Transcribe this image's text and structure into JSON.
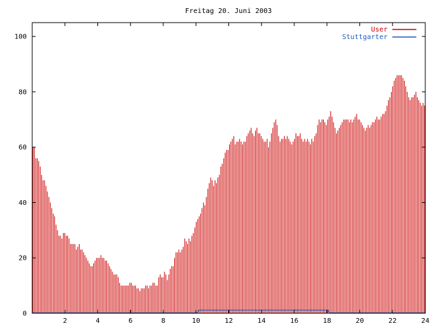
{
  "colors": {
    "user": "#cc0000",
    "stuttgarter": "#1f5fbf",
    "axis": "#000000",
    "background": "#ffffff"
  },
  "chart_data": {
    "type": "bar",
    "title": "Freitag 20. Juni 2003",
    "xlabel": "",
    "ylabel": "",
    "xlim": [
      0,
      24
    ],
    "ylim": [
      0,
      105
    ],
    "grid": false,
    "legend": "top-right",
    "x_ticks": [
      "2",
      "4",
      "6",
      "8",
      "10",
      "12",
      "14",
      "16",
      "18",
      "20",
      "22",
      "24"
    ],
    "y_ticks": [
      "0",
      "20",
      "40",
      "60",
      "80",
      "100"
    ],
    "x_interval_hours": 0.0833,
    "series": [
      {
        "name": "User",
        "values": [
          60,
          60,
          56,
          56,
          55,
          53,
          50,
          48,
          48,
          46,
          44,
          42,
          40,
          38,
          36,
          35,
          32,
          30,
          28,
          28,
          27,
          29,
          29,
          28,
          28,
          27,
          25,
          25,
          25,
          25,
          23,
          24,
          25,
          23,
          23,
          22,
          21,
          20,
          19,
          18,
          17,
          17,
          18,
          19,
          20,
          20,
          20,
          21,
          20,
          20,
          19,
          19,
          18,
          17,
          16,
          15,
          14,
          14,
          14,
          13,
          11,
          10,
          10,
          10,
          10,
          10,
          10,
          11,
          11,
          10,
          10,
          10,
          9,
          9,
          8,
          9,
          9,
          9,
          10,
          10,
          9,
          10,
          10,
          11,
          11,
          10,
          10,
          13,
          14,
          13,
          13,
          15,
          14,
          12,
          14,
          16,
          17,
          17,
          20,
          22,
          22,
          23,
          22,
          23,
          24,
          27,
          26,
          25,
          27,
          26,
          28,
          29,
          31,
          33,
          34,
          35,
          36,
          38,
          40,
          39,
          42,
          45,
          47,
          49,
          48,
          46,
          48,
          47,
          49,
          50,
          53,
          54,
          56,
          58,
          59,
          59,
          61,
          62,
          63,
          64,
          61,
          62,
          62,
          63,
          62,
          61,
          62,
          62,
          64,
          65,
          66,
          67,
          65,
          64,
          66,
          67,
          65,
          65,
          64,
          63,
          62,
          62,
          63,
          60,
          62,
          65,
          67,
          69,
          70,
          68,
          64,
          62,
          63,
          63,
          64,
          63,
          64,
          63,
          62,
          61,
          62,
          63,
          65,
          64,
          64,
          65,
          63,
          62,
          63,
          62,
          63,
          62,
          61,
          63,
          62,
          64,
          65,
          68,
          70,
          69,
          70,
          70,
          69,
          68,
          70,
          71,
          73,
          71,
          69,
          67,
          65,
          66,
          67,
          68,
          69,
          70,
          70,
          70,
          70,
          69,
          70,
          69,
          70,
          71,
          72,
          70,
          70,
          69,
          68,
          67,
          66,
          67,
          68,
          67,
          68,
          69,
          69,
          70,
          71,
          70,
          70,
          71,
          72,
          72,
          73,
          75,
          77,
          78,
          80,
          82,
          84,
          85,
          86,
          86,
          86,
          86,
          85,
          84,
          82,
          80,
          78,
          77,
          78,
          78,
          79,
          80,
          78,
          77,
          76,
          75,
          76,
          75
        ],
        "fill_to_zero": true
      },
      {
        "name": "Stuttgarter",
        "values": [
          0,
          0,
          0,
          0,
          0,
          0,
          0,
          0,
          0,
          0,
          0,
          0,
          0,
          0,
          0,
          0,
          0,
          0,
          0,
          0,
          0,
          0,
          0,
          0,
          0,
          0,
          0,
          0,
          0,
          0,
          0,
          0,
          0,
          0,
          0,
          0,
          0,
          0,
          0,
          0,
          0,
          0,
          0,
          0,
          0,
          0,
          0,
          0,
          0,
          0,
          0,
          0,
          0,
          0,
          0,
          0,
          0,
          0,
          0,
          0,
          0,
          0,
          0,
          0,
          0,
          0,
          0,
          0,
          0,
          0,
          0,
          0,
          0,
          0,
          0,
          0,
          0,
          0,
          0,
          0,
          0,
          0,
          0,
          0,
          0,
          0,
          0,
          0,
          0,
          0,
          0,
          0,
          0,
          0,
          0,
          0,
          0,
          0,
          0,
          0,
          0,
          0,
          0,
          0,
          0,
          0,
          0,
          0,
          0,
          0,
          0,
          0,
          0,
          0,
          0,
          0,
          0,
          0,
          0,
          0,
          0,
          0,
          1,
          1,
          1,
          1,
          1,
          1,
          1,
          1,
          1,
          1,
          1,
          1,
          1,
          1,
          1,
          1,
          1,
          1,
          1,
          1,
          1,
          1,
          1,
          1,
          1,
          1,
          1,
          1,
          1,
          1,
          1,
          1,
          1,
          1,
          1,
          1,
          1,
          1,
          1,
          1,
          1,
          1,
          1,
          1,
          1,
          1,
          1,
          1,
          1,
          1,
          1,
          1,
          1,
          1,
          1,
          1,
          1,
          1,
          1,
          1,
          1,
          1,
          1,
          1,
          1,
          1,
          1,
          1,
          1,
          1,
          1,
          1,
          1,
          1,
          1,
          1,
          1,
          1,
          1,
          1,
          1,
          1,
          1,
          1,
          1,
          1,
          1,
          1,
          1,
          1,
          1,
          1,
          1,
          1,
          1,
          1,
          0,
          0,
          0,
          0,
          0,
          0,
          0,
          0,
          0,
          0,
          0,
          0,
          0,
          0,
          0,
          0,
          0,
          0,
          0,
          0,
          0,
          0,
          0,
          0,
          0,
          0,
          0,
          0,
          0,
          0,
          0,
          0,
          0,
          0,
          0,
          0,
          0,
          0,
          0,
          0,
          0,
          0,
          0,
          0,
          0,
          0,
          0,
          0,
          0,
          0,
          0,
          0,
          0,
          0,
          0,
          0,
          0,
          0,
          0,
          0,
          0,
          0,
          0,
          0,
          0,
          0,
          0,
          0,
          0,
          0,
          0
        ]
      }
    ]
  }
}
